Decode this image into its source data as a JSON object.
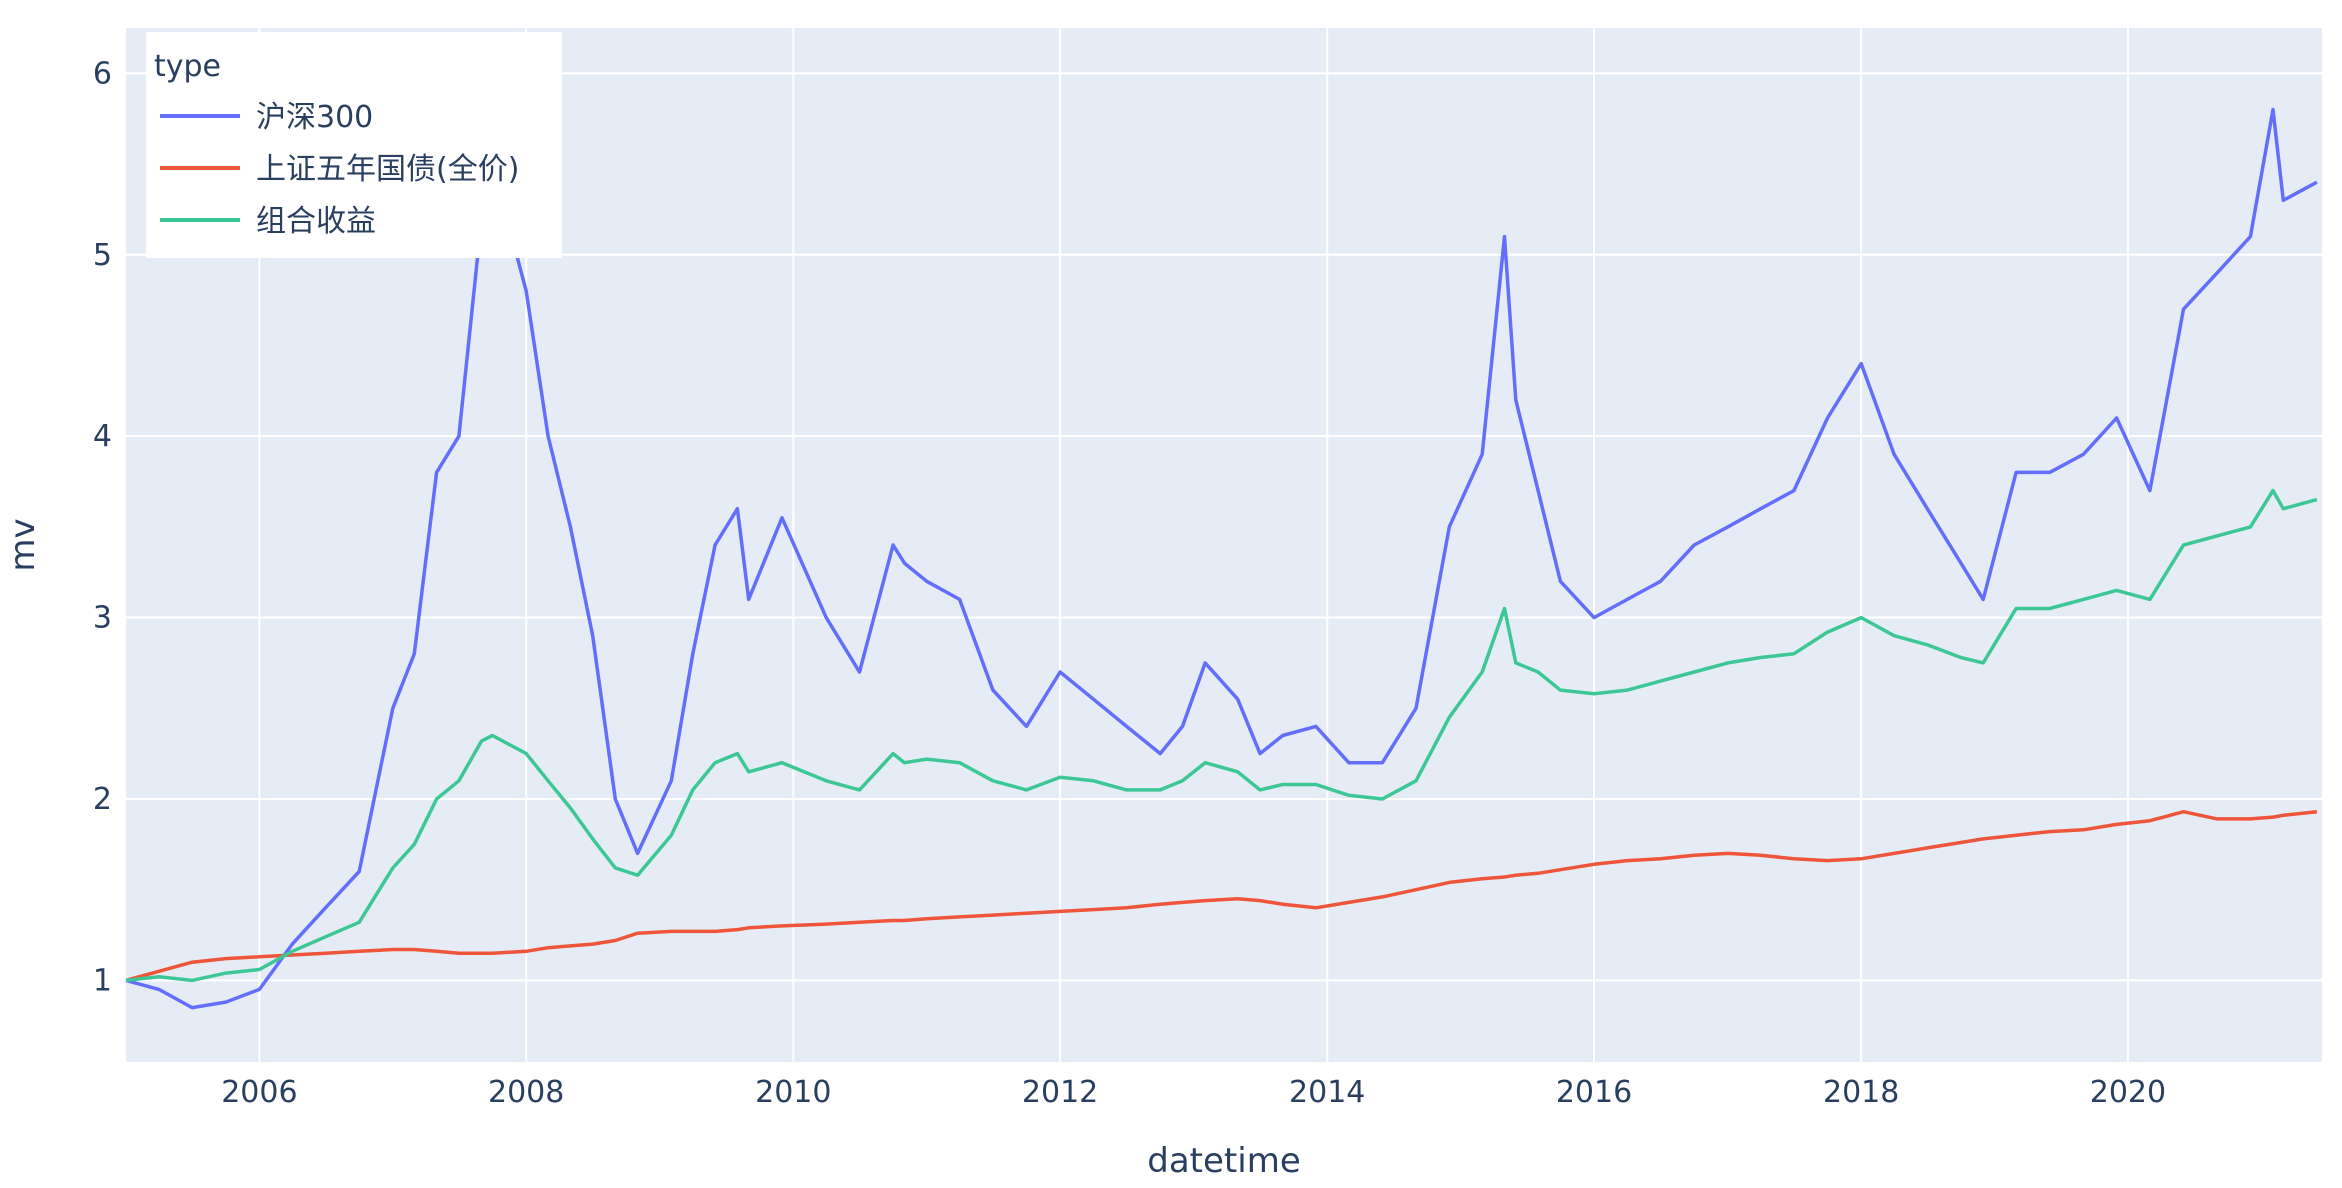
{
  "chart_data": {
    "type": "line",
    "title": "",
    "xlabel": "datetime",
    "ylabel": "mv",
    "xlim": [
      "2005-01-01",
      "2021-06-15"
    ],
    "ylim": [
      0.55,
      6.25
    ],
    "x_ticks": [
      "2006",
      "2008",
      "2010",
      "2012",
      "2014",
      "2016",
      "2018",
      "2020"
    ],
    "y_ticks": [
      "1",
      "2",
      "3",
      "4",
      "5",
      "6"
    ],
    "grid": true,
    "legend": {
      "title": "type",
      "position": "top-left"
    },
    "x": [
      "2005-01",
      "2005-04",
      "2005-07",
      "2005-10",
      "2006-01",
      "2006-04",
      "2006-07",
      "2006-10",
      "2007-01",
      "2007-03",
      "2007-05",
      "2007-07",
      "2007-09",
      "2007-10",
      "2008-01",
      "2008-03",
      "2008-05",
      "2008-07",
      "2008-09",
      "2008-11",
      "2009-02",
      "2009-04",
      "2009-06",
      "2009-08",
      "2009-09",
      "2009-12",
      "2010-04",
      "2010-07",
      "2010-10",
      "2010-11",
      "2011-01",
      "2011-04",
      "2011-07",
      "2011-10",
      "2012-01",
      "2012-04",
      "2012-07",
      "2012-10",
      "2012-12",
      "2013-02",
      "2013-05",
      "2013-07",
      "2013-09",
      "2013-12",
      "2014-03",
      "2014-06",
      "2014-09",
      "2014-12",
      "2015-03",
      "2015-05",
      "2015-06",
      "2015-08",
      "2015-10",
      "2016-01",
      "2016-04",
      "2016-07",
      "2016-10",
      "2017-01",
      "2017-04",
      "2017-07",
      "2017-10",
      "2018-01",
      "2018-04",
      "2018-07",
      "2018-10",
      "2018-12",
      "2019-03",
      "2019-06",
      "2019-09",
      "2019-12",
      "2020-03",
      "2020-06",
      "2020-09",
      "2020-12",
      "2021-02",
      "2021-03",
      "2021-06"
    ],
    "series": [
      {
        "name": "沪深300",
        "color": "#636efa",
        "values": [
          1.0,
          0.95,
          0.85,
          0.88,
          0.95,
          1.2,
          1.4,
          1.6,
          2.5,
          2.8,
          3.8,
          4.0,
          5.2,
          5.5,
          4.8,
          4.0,
          3.5,
          2.9,
          2.0,
          1.7,
          2.1,
          2.8,
          3.4,
          3.6,
          3.1,
          3.55,
          3.0,
          2.7,
          3.4,
          3.3,
          3.2,
          3.1,
          2.6,
          2.4,
          2.7,
          2.55,
          2.4,
          2.25,
          2.4,
          2.75,
          2.55,
          2.25,
          2.35,
          2.4,
          2.2,
          2.2,
          2.5,
          3.5,
          3.9,
          5.1,
          4.2,
          3.7,
          3.2,
          3.0,
          3.1,
          3.2,
          3.4,
          3.5,
          3.6,
          3.7,
          4.1,
          4.4,
          3.9,
          3.6,
          3.3,
          3.1,
          3.8,
          3.8,
          3.9,
          4.1,
          3.7,
          4.7,
          4.9,
          5.1,
          5.8,
          5.3,
          5.4
        ]
      },
      {
        "name": "上证五年国债(全价)",
        "color": "#ef553b",
        "values": [
          1.0,
          1.05,
          1.1,
          1.12,
          1.13,
          1.14,
          1.15,
          1.16,
          1.17,
          1.17,
          1.16,
          1.15,
          1.15,
          1.15,
          1.16,
          1.18,
          1.19,
          1.2,
          1.22,
          1.26,
          1.27,
          1.27,
          1.27,
          1.28,
          1.29,
          1.3,
          1.31,
          1.32,
          1.33,
          1.33,
          1.34,
          1.35,
          1.36,
          1.37,
          1.38,
          1.39,
          1.4,
          1.42,
          1.43,
          1.44,
          1.45,
          1.44,
          1.42,
          1.4,
          1.43,
          1.46,
          1.5,
          1.54,
          1.56,
          1.57,
          1.58,
          1.59,
          1.61,
          1.64,
          1.66,
          1.67,
          1.69,
          1.7,
          1.69,
          1.67,
          1.66,
          1.67,
          1.7,
          1.73,
          1.76,
          1.78,
          1.8,
          1.82,
          1.83,
          1.86,
          1.88,
          1.93,
          1.89,
          1.89,
          1.9,
          1.91,
          1.93
        ]
      },
      {
        "name": "组合收益",
        "color": "#3ec796",
        "values": [
          1.0,
          1.02,
          1.0,
          1.04,
          1.06,
          1.16,
          1.24,
          1.32,
          1.62,
          1.75,
          2.0,
          2.1,
          2.32,
          2.35,
          2.25,
          2.1,
          1.95,
          1.78,
          1.62,
          1.58,
          1.8,
          2.05,
          2.2,
          2.25,
          2.15,
          2.2,
          2.1,
          2.05,
          2.25,
          2.2,
          2.22,
          2.2,
          2.1,
          2.05,
          2.12,
          2.1,
          2.05,
          2.05,
          2.1,
          2.2,
          2.15,
          2.05,
          2.08,
          2.08,
          2.02,
          2.0,
          2.1,
          2.45,
          2.7,
          3.05,
          2.75,
          2.7,
          2.6,
          2.58,
          2.6,
          2.65,
          2.7,
          2.75,
          2.78,
          2.8,
          2.92,
          3.0,
          2.9,
          2.85,
          2.78,
          2.75,
          3.05,
          3.05,
          3.1,
          3.15,
          3.1,
          3.4,
          3.45,
          3.5,
          3.7,
          3.6,
          3.65
        ]
      }
    ]
  }
}
